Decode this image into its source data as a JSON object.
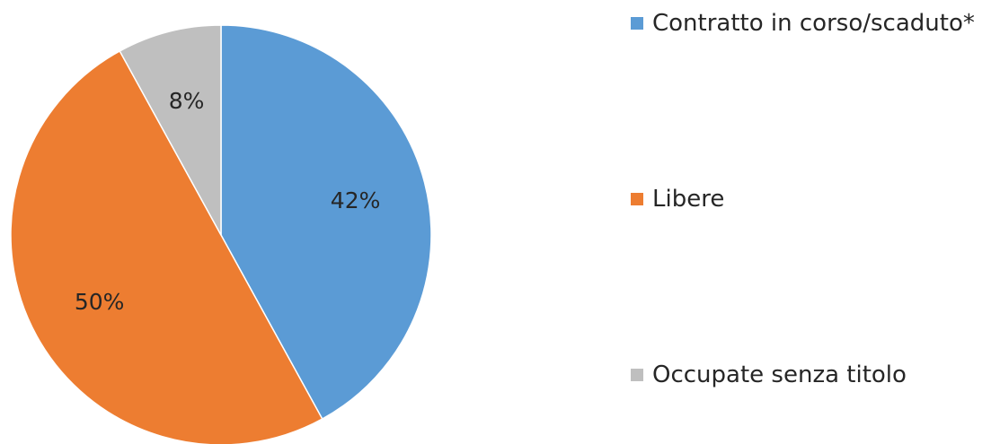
{
  "chart_data": {
    "type": "pie",
    "title": "",
    "start_angle_deg": 0,
    "direction": "clockwise",
    "legend_position": "right",
    "slices": [
      {
        "label": "Contratto in corso/scaduto*",
        "value": 42,
        "display": "42%",
        "color": "#5b9bd5"
      },
      {
        "label": "Libere",
        "value": 50,
        "display": "50%",
        "color": "#ed7d31"
      },
      {
        "label": "Occupate senza titolo",
        "value": 8,
        "display": "8%",
        "color": "#bfbfbf"
      }
    ]
  }
}
